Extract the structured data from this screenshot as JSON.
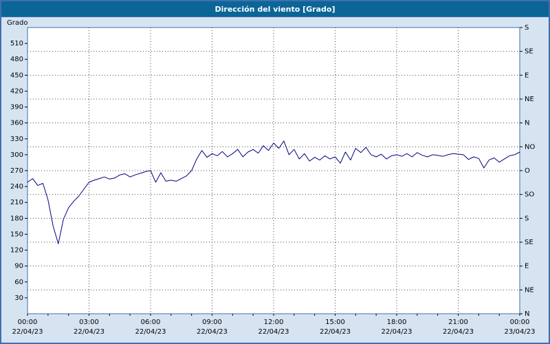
{
  "window": {
    "title": "Dirección del viento [Grado]"
  },
  "colors": {
    "titlebar_bg": "#0b6597",
    "window_bg": "#d6e4f2",
    "plot_bg": "#ffffff",
    "plot_border": "#3f6fae",
    "grid": "#444444",
    "line": "#000080",
    "text": "#000000"
  },
  "chart_data": {
    "type": "line",
    "title": "Dirección del viento [Grado]",
    "ylabel_left": "Grado",
    "ylim": [
      0,
      540
    ],
    "xlim_hours": [
      0,
      24
    ],
    "grid": "dotted, horizontal every 45 deg, vertical every 3 h",
    "legend_position": "none",
    "y_left_ticks": [
      30,
      60,
      90,
      120,
      150,
      180,
      210,
      240,
      270,
      300,
      330,
      360,
      390,
      420,
      450,
      480,
      510
    ],
    "y_right_ticks": [
      {
        "deg": 0,
        "label": "N"
      },
      {
        "deg": 45,
        "label": "NE"
      },
      {
        "deg": 90,
        "label": "E"
      },
      {
        "deg": 135,
        "label": "SE"
      },
      {
        "deg": 180,
        "label": "S"
      },
      {
        "deg": 225,
        "label": "SO"
      },
      {
        "deg": 270,
        "label": "O"
      },
      {
        "deg": 315,
        "label": "NO"
      },
      {
        "deg": 360,
        "label": "N"
      },
      {
        "deg": 405,
        "label": "NE"
      },
      {
        "deg": 450,
        "label": "E"
      },
      {
        "deg": 495,
        "label": "SE"
      },
      {
        "deg": 540,
        "label": "S"
      }
    ],
    "x_ticks": [
      {
        "t": 0,
        "time": "00:00",
        "date": "22/04/23"
      },
      {
        "t": 3,
        "time": "03:00",
        "date": "22/04/23"
      },
      {
        "t": 6,
        "time": "06:00",
        "date": "22/04/23"
      },
      {
        "t": 9,
        "time": "09:00",
        "date": "22/04/23"
      },
      {
        "t": 12,
        "time": "12:00",
        "date": "22/04/23"
      },
      {
        "t": 15,
        "time": "15:00",
        "date": "22/04/23"
      },
      {
        "t": 18,
        "time": "18:00",
        "date": "22/04/23"
      },
      {
        "t": 21,
        "time": "21:00",
        "date": "22/04/23"
      },
      {
        "t": 24,
        "time": "00:00",
        "date": "23/04/23"
      }
    ],
    "series": [
      {
        "name": "Dirección del viento",
        "color": "#000080",
        "x_start_hours": 0,
        "x_step_hours": 0.25,
        "values": [
          248,
          255,
          242,
          246,
          215,
          165,
          132,
          178,
          200,
          212,
          222,
          235,
          248,
          252,
          255,
          258,
          254,
          256,
          262,
          264,
          258,
          262,
          265,
          268,
          270,
          248,
          266,
          250,
          252,
          250,
          255,
          260,
          270,
          292,
          308,
          295,
          302,
          298,
          306,
          296,
          302,
          310,
          296,
          305,
          310,
          303,
          317,
          308,
          322,
          312,
          326,
          300,
          310,
          292,
          302,
          288,
          295,
          290,
          298,
          292,
          296,
          284,
          305,
          290,
          312,
          304,
          314,
          300,
          296,
          301,
          292,
          298,
          300,
          297,
          302,
          296,
          304,
          299,
          296,
          300,
          299,
          297,
          300,
          302,
          301,
          300,
          291,
          296,
          293,
          275,
          290,
          294,
          286,
          292,
          298,
          300,
          305
        ]
      }
    ]
  }
}
